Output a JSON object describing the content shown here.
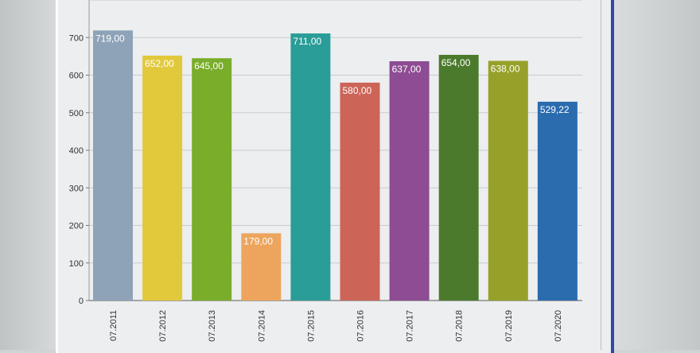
{
  "chart_data": {
    "type": "bar",
    "title": "",
    "xlabel": "",
    "ylabel": "",
    "categories": [
      "07.2011",
      "07.2012",
      "07.2013",
      "07.2014",
      "07.2015",
      "07.2016",
      "07.2017",
      "07.2018",
      "07.2019",
      "07.2020"
    ],
    "values": [
      719.0,
      652.0,
      645.0,
      179.0,
      711.0,
      580.0,
      637.0,
      654.0,
      638.0,
      529.22
    ],
    "data_labels": [
      "719,00",
      "652,00",
      "645,00",
      "179,00",
      "711,00",
      "580,00",
      "637,00",
      "654,00",
      "638,00",
      "529,22"
    ],
    "bar_colors": [
      "#8ea3b8",
      "#e2c93c",
      "#79ad2a",
      "#eda55d",
      "#2a9d98",
      "#cc6557",
      "#8d4c93",
      "#4c7a2d",
      "#97a12a",
      "#2b6cae"
    ],
    "yticks": [
      0,
      100,
      200,
      300,
      400,
      500,
      600,
      700
    ],
    "ylim": [
      0,
      800
    ],
    "grid": true,
    "legend": "none"
  }
}
